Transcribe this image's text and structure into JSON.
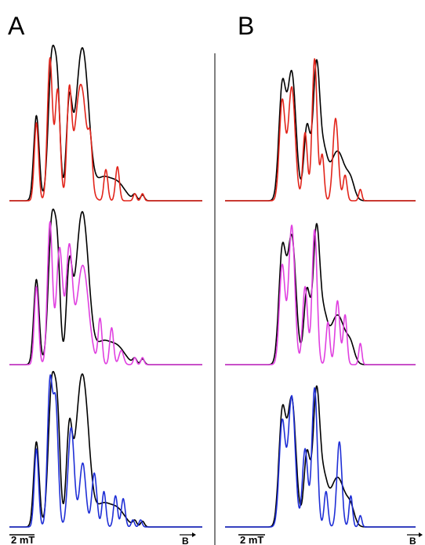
{
  "panels": [
    {
      "label": "A",
      "scale_bar": "2 mT",
      "field_label": "B"
    },
    {
      "label": "B",
      "scale_bar": "2 mT",
      "field_label": "B"
    }
  ],
  "colors": {
    "experimental": "#000000",
    "row1": "#e2241a",
    "row2": "#e040e0",
    "row3": "#1f2fd6",
    "divider": "#000000"
  },
  "chart_data": [
    {
      "panel": "A",
      "row": 1,
      "type": "line",
      "xlim": [
        0,
        100
      ],
      "ylim": [
        0,
        1.05
      ],
      "grid": false,
      "series": [
        {
          "color": "#000000",
          "peaks": [
            [
              14,
              0.6,
              1.4
            ],
            [
              22,
              1.0,
              1.8
            ],
            [
              25,
              0.65,
              1.4
            ],
            [
              31,
              0.63,
              1.5
            ],
            [
              37,
              0.9,
              3.0
            ],
            [
              40,
              0.3,
              2.5
            ],
            [
              48,
              0.15,
              4.0
            ],
            [
              56,
              0.12,
              4.0
            ],
            [
              65,
              0.04,
              1.0
            ],
            [
              69,
              0.04,
              1.0
            ]
          ]
        },
        {
          "color": "#e2241a",
          "peaks": [
            [
              14,
              0.55,
              1.1
            ],
            [
              21,
              1.0,
              1.3
            ],
            [
              25,
              0.78,
              1.3
            ],
            [
              31,
              0.7,
              1.2
            ],
            [
              37,
              0.82,
              3.0
            ],
            [
              42,
              0.28,
              1.0
            ],
            [
              50,
              0.22,
              1.0
            ],
            [
              56,
              0.24,
              1.0
            ],
            [
              65,
              0.05,
              0.8
            ],
            [
              69,
              0.05,
              0.8
            ]
          ]
        }
      ]
    },
    {
      "panel": "A",
      "row": 2,
      "type": "line",
      "xlim": [
        0,
        100
      ],
      "ylim": [
        0,
        1.05
      ],
      "grid": false,
      "series": [
        {
          "color": "#000000",
          "peaks": [
            [
              14,
              0.6,
              1.4
            ],
            [
              22,
              1.0,
              1.8
            ],
            [
              25,
              0.65,
              1.4
            ],
            [
              31,
              0.63,
              1.5
            ],
            [
              37,
              0.9,
              3.0
            ],
            [
              40,
              0.3,
              2.5
            ],
            [
              48,
              0.15,
              4.0
            ],
            [
              56,
              0.12,
              4.0
            ],
            [
              65,
              0.04,
              1.0
            ],
            [
              69,
              0.04,
              1.0
            ]
          ]
        },
        {
          "color": "#e040e0",
          "peaks": [
            [
              14,
              0.55,
              1.1
            ],
            [
              21,
              1.0,
              1.3
            ],
            [
              26,
              0.82,
              1.6
            ],
            [
              31,
              0.8,
              1.6
            ],
            [
              38,
              0.7,
              3.0
            ],
            [
              47,
              0.32,
              1.0
            ],
            [
              53,
              0.26,
              1.0
            ],
            [
              58,
              0.1,
              1.2
            ],
            [
              65,
              0.05,
              0.8
            ],
            [
              69,
              0.05,
              0.8
            ]
          ]
        }
      ]
    },
    {
      "panel": "A",
      "row": 3,
      "type": "line",
      "xlim": [
        0,
        100
      ],
      "ylim": [
        0,
        1.05
      ],
      "grid": false,
      "series": [
        {
          "color": "#000000",
          "peaks": [
            [
              14,
              0.6,
              1.4
            ],
            [
              22,
              1.0,
              1.8
            ],
            [
              25,
              0.65,
              1.4
            ],
            [
              31,
              0.63,
              1.5
            ],
            [
              37,
              0.9,
              3.0
            ],
            [
              40,
              0.3,
              2.5
            ],
            [
              48,
              0.15,
              4.0
            ],
            [
              56,
              0.12,
              4.0
            ],
            [
              65,
              0.04,
              1.0
            ],
            [
              69,
              0.04,
              1.0
            ]
          ]
        },
        {
          "color": "#1f2fd6",
          "peaks": [
            [
              14,
              0.55,
              1.1
            ],
            [
              21,
              1.0,
              1.3
            ],
            [
              24,
              0.85,
              1.3
            ],
            [
              32,
              0.7,
              1.6
            ],
            [
              38,
              0.45,
              1.6
            ],
            [
              44,
              0.38,
              1.3
            ],
            [
              49,
              0.25,
              1.0
            ],
            [
              55,
              0.22,
              1.0
            ],
            [
              59,
              0.2,
              1.0
            ],
            [
              64,
              0.05,
              0.8
            ],
            [
              68,
              0.05,
              0.8
            ]
          ]
        }
      ]
    },
    {
      "panel": "B",
      "row": 1,
      "type": "line",
      "xlim": [
        0,
        100
      ],
      "ylim": [
        0,
        1.05
      ],
      "grid": false,
      "series": [
        {
          "color": "#000000",
          "peaks": [
            [
              30,
              0.78,
              1.8
            ],
            [
              35,
              0.9,
              2.2
            ],
            [
              43,
              0.52,
              1.6
            ],
            [
              48,
              0.96,
              1.8
            ],
            [
              52,
              0.25,
              1.8
            ],
            [
              59,
              0.35,
              4.0
            ],
            [
              66,
              0.1,
              2.0
            ]
          ]
        },
        {
          "color": "#e2241a",
          "peaks": [
            [
              30,
              0.7,
              1.5
            ],
            [
              35,
              0.8,
              1.8
            ],
            [
              42,
              0.48,
              1.2
            ],
            [
              47,
              1.0,
              1.3
            ],
            [
              51,
              0.32,
              1.0
            ],
            [
              58,
              0.58,
              1.4
            ],
            [
              63,
              0.18,
              1.0
            ],
            [
              71,
              0.08,
              0.8
            ]
          ]
        }
      ]
    },
    {
      "panel": "B",
      "row": 2,
      "type": "line",
      "xlim": [
        0,
        100
      ],
      "ylim": [
        0,
        1.05
      ],
      "grid": false,
      "series": [
        {
          "color": "#000000",
          "peaks": [
            [
              30,
              0.78,
              1.8
            ],
            [
              35,
              0.9,
              2.2
            ],
            [
              43,
              0.52,
              1.6
            ],
            [
              48,
              0.96,
              1.8
            ],
            [
              52,
              0.25,
              1.8
            ],
            [
              59,
              0.35,
              4.0
            ],
            [
              66,
              0.1,
              2.0
            ]
          ]
        },
        {
          "color": "#e040e0",
          "peaks": [
            [
              30,
              0.7,
              1.5
            ],
            [
              35,
              0.98,
              1.6
            ],
            [
              42,
              0.55,
              1.3
            ],
            [
              47,
              0.95,
              1.3
            ],
            [
              54,
              0.3,
              1.0
            ],
            [
              59,
              0.45,
              1.2
            ],
            [
              63,
              0.35,
              1.0
            ],
            [
              71,
              0.15,
              0.8
            ]
          ]
        }
      ]
    },
    {
      "panel": "B",
      "row": 3,
      "type": "line",
      "xlim": [
        0,
        100
      ],
      "ylim": [
        0,
        1.05
      ],
      "grid": false,
      "series": [
        {
          "color": "#000000",
          "peaks": [
            [
              30,
              0.78,
              1.8
            ],
            [
              35,
              0.9,
              2.2
            ],
            [
              43,
              0.52,
              1.6
            ],
            [
              48,
              0.96,
              1.8
            ],
            [
              52,
              0.25,
              1.8
            ],
            [
              59,
              0.35,
              4.0
            ],
            [
              66,
              0.1,
              2.0
            ]
          ]
        },
        {
          "color": "#1f2fd6",
          "peaks": [
            [
              30,
              0.74,
              1.6
            ],
            [
              35,
              0.92,
              1.8
            ],
            [
              42,
              0.55,
              1.4
            ],
            [
              47,
              0.98,
              1.4
            ],
            [
              53,
              0.25,
              1.0
            ],
            [
              60,
              0.6,
              1.3
            ],
            [
              66,
              0.22,
              0.9
            ],
            [
              71,
              0.08,
              0.8
            ]
          ]
        }
      ]
    }
  ]
}
